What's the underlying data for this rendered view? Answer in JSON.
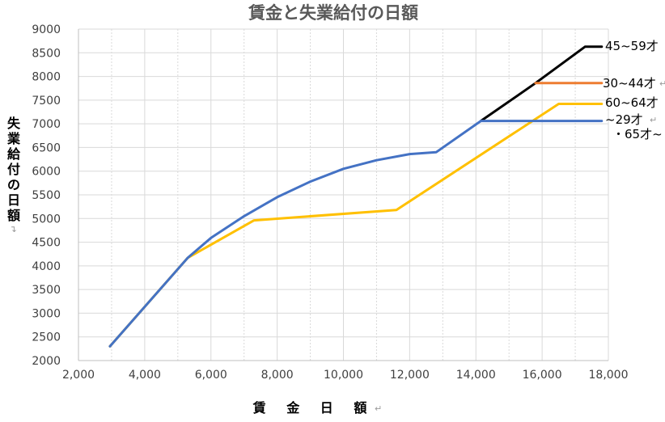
{
  "chart_data": {
    "type": "line",
    "title": "賃金と失業給付の日額",
    "xlabel": "賃 金 日 額",
    "ylabel": "失業給付の日額",
    "xlim": [
      2000,
      18000
    ],
    "ylim": [
      2000,
      9000
    ],
    "x_ticks": [
      2000,
      4000,
      6000,
      8000,
      10000,
      12000,
      14000,
      16000,
      18000
    ],
    "x_tick_labels": [
      "2,000",
      "4,000",
      "6,000",
      "8,000",
      "10,000",
      "12,000",
      "14,000",
      "16,000",
      "18,000"
    ],
    "y_ticks": [
      2000,
      2500,
      3000,
      3500,
      4000,
      4500,
      5000,
      5500,
      6000,
      6500,
      7000,
      7500,
      8000,
      8500,
      9000
    ],
    "y_tick_labels": [
      "2000",
      "2500",
      "3000",
      "3500",
      "4000",
      "4500",
      "5000",
      "5500",
      "6000",
      "6500",
      "7000",
      "7500",
      "8000",
      "8500",
      "9000"
    ],
    "grid": true,
    "series": [
      {
        "name": "45~59才",
        "color": "#000000",
        "points": [
          [
            14150,
            7060
          ],
          [
            15100,
            7520
          ],
          [
            15800,
            7860
          ],
          [
            17300,
            8630
          ],
          [
            17800,
            8630
          ]
        ]
      },
      {
        "name": "30~44才",
        "color": "#ED7D31",
        "points": [
          [
            15800,
            7860
          ],
          [
            17800,
            7860
          ]
        ]
      },
      {
        "name": "60~64才",
        "color": "#FFC000",
        "points": [
          [
            2950,
            2300
          ],
          [
            5300,
            4170
          ],
          [
            7300,
            4960
          ],
          [
            11600,
            5180
          ],
          [
            16500,
            7420
          ],
          [
            17800,
            7420
          ]
        ]
      },
      {
        "name": "~29才・65才~",
        "color": "#4472C4",
        "points": [
          [
            2950,
            2300
          ],
          [
            5300,
            4170
          ],
          [
            6000,
            4590
          ],
          [
            7000,
            5050
          ],
          [
            8000,
            5450
          ],
          [
            9000,
            5780
          ],
          [
            10000,
            6050
          ],
          [
            11000,
            6230
          ],
          [
            12000,
            6360
          ],
          [
            12800,
            6400
          ],
          [
            14150,
            7060
          ],
          [
            17800,
            7060
          ]
        ]
      }
    ],
    "legend_labels": [
      {
        "text": "45~59才",
        "series": "45~59才"
      },
      {
        "text": "30~44才",
        "series": "30~44才"
      },
      {
        "text": "60~64才",
        "series": "60~64才"
      },
      {
        "text": "~29才",
        "series": "~29才・65才~"
      },
      {
        "text": "・65才~",
        "series": "~29才・65才~"
      }
    ],
    "return_mark": "↵"
  }
}
